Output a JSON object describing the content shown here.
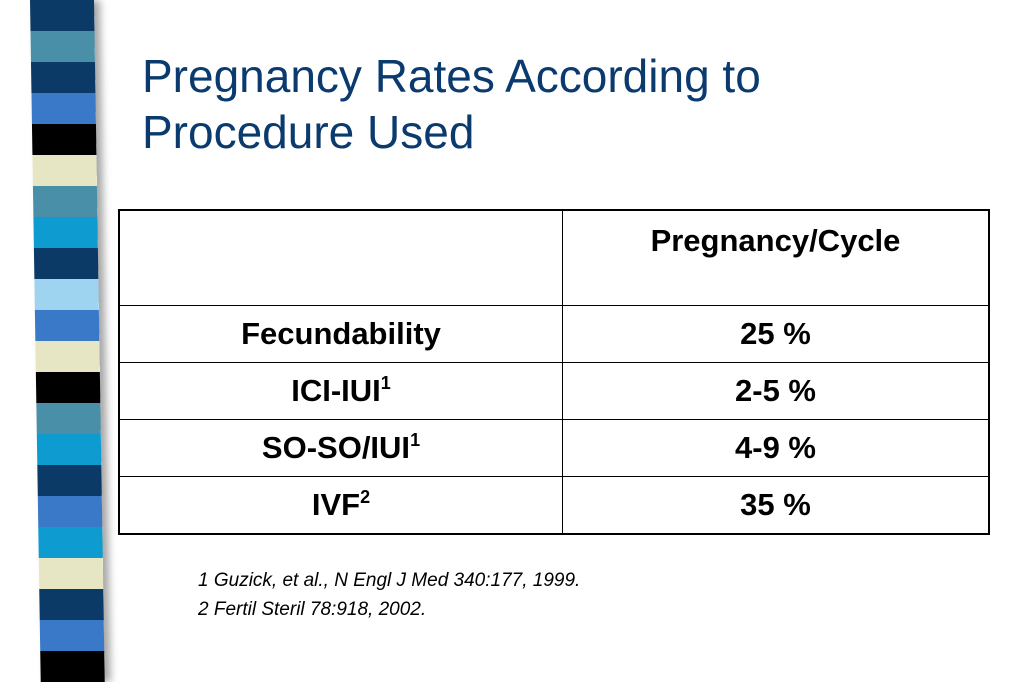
{
  "slide": {
    "title_lines": [
      "Pregnancy Rates According to",
      "Procedure Used"
    ],
    "decoration": {
      "stripes": [
        "#0b3a66",
        "#4a8fa8",
        "#0b3a66",
        "#3a78c8",
        "#000000",
        "#e6e6c4",
        "#4a8fa8",
        "#0e9bd0",
        "#0b3a66",
        "#9fd4f0",
        "#3a78c8",
        "#e6e6c4",
        "#000000",
        "#4a8fa8",
        "#0e9bd0",
        "#0b3a66",
        "#3a78c8",
        "#0e9bd0",
        "#e6e6c4",
        "#0b3a66",
        "#3a78c8",
        "#000000"
      ],
      "title_color": "#0a3a6e"
    }
  },
  "table": {
    "header": {
      "corner": "",
      "value_col": "Pregnancy/Cycle"
    },
    "rows": [
      {
        "label": "Fecundability",
        "sup": "",
        "value": "25 %"
      },
      {
        "label": "ICI-IUI",
        "sup": "1",
        "value": "2-5 %"
      },
      {
        "label": "SO-SO/IUI",
        "sup": "1",
        "value": "4-9 %"
      },
      {
        "label": "IVF",
        "sup": "2",
        "value": "35 %"
      }
    ]
  },
  "footnotes": [
    "1 Guzick, et al., N Engl J Med 340:177, 1999.",
    "2 Fertil Steril 78:918, 2002."
  ]
}
